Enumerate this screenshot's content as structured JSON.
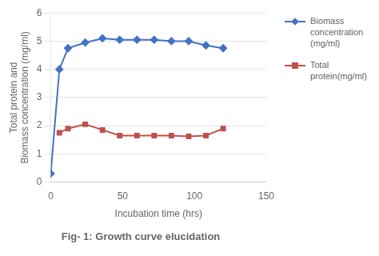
{
  "chart_data": {
    "type": "line",
    "title": "Fig- 1: Growth curve elucidation",
    "xlabel": "Incubation time (hrs)",
    "ylabel": "Total protein and\nBiomass concentration (mg/ml)",
    "series": [
      {
        "name": "Biomass\nconcentration\n(mg/ml)",
        "color": "#4472C4",
        "marker": "diamond",
        "x": [
          0,
          6,
          12,
          24,
          36,
          48,
          60,
          72,
          84,
          96,
          108,
          120
        ],
        "values": [
          0.3,
          4.0,
          4.75,
          4.95,
          5.1,
          5.05,
          5.05,
          5.05,
          5.0,
          5.0,
          4.85,
          4.75
        ]
      },
      {
        "name": "Total\nprotein(mg/ml)",
        "color": "#C0504D",
        "marker": "square",
        "x": [
          6,
          12,
          24,
          36,
          48,
          60,
          72,
          84,
          96,
          108,
          120
        ],
        "values": [
          1.75,
          1.9,
          2.05,
          1.85,
          1.65,
          1.65,
          1.65,
          1.65,
          1.62,
          1.65,
          1.9
        ]
      }
    ],
    "xlim": [
      0,
      150
    ],
    "xticks": [
      0,
      50,
      100,
      150
    ],
    "ylim": [
      0,
      6
    ],
    "yticks": [
      0,
      1,
      2,
      3,
      4,
      5,
      6
    ],
    "grid": "y",
    "legend": "right"
  }
}
